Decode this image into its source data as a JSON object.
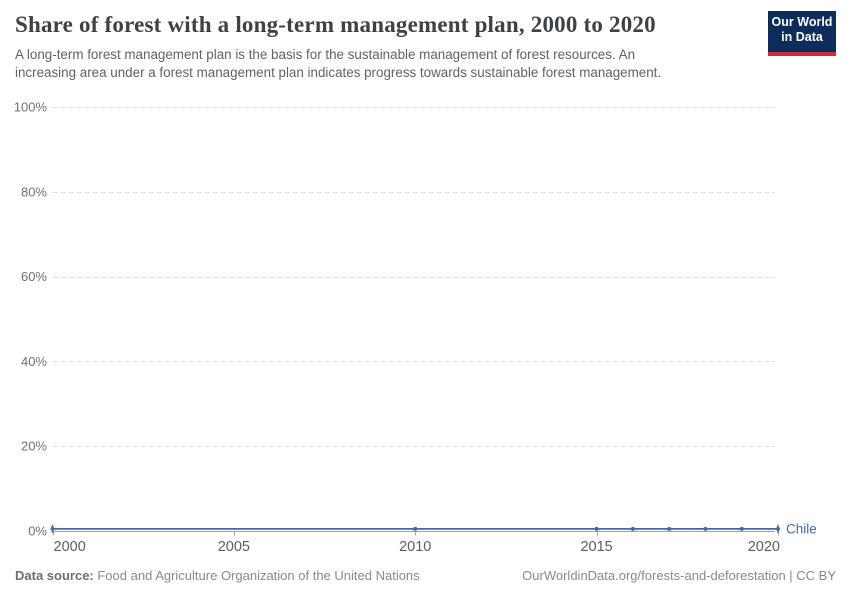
{
  "header": {
    "title": "Share of forest with a long-term management plan, 2000 to 2020",
    "subtitle_lines": [
      "A long-term forest management plan is the basis for the sustainable management of forest resources. An",
      "increasing area under a forest management plan indicates progress towards sustainable forest management."
    ]
  },
  "logo": {
    "line1": "Our World",
    "line2": "in Data",
    "bg_color": "#0c2d5c",
    "bar_color": "#cf2b36"
  },
  "chart_data": {
    "type": "line",
    "title": "Share of forest with a long-term management plan, 2000 to 2020",
    "x": [
      2000,
      2010,
      2015,
      2016,
      2017,
      2018,
      2019,
      2020
    ],
    "series": [
      {
        "name": "Chile",
        "values": [
          0.5,
          0.5,
          0.5,
          0.5,
          0.5,
          0.5,
          0.5,
          0.5
        ],
        "color": "#4668a7"
      }
    ],
    "entity_label": "Chile",
    "xlim": [
      2000,
      2020
    ],
    "ylim": [
      0,
      100
    ],
    "x_ticks": [
      2000,
      2005,
      2010,
      2015,
      2020
    ],
    "x_tick_labels": [
      "2000",
      "2005",
      "2010",
      "2015",
      "2020"
    ],
    "y_ticks": [
      0,
      20,
      40,
      60,
      80,
      100
    ],
    "y_tick_labels": [
      "0%",
      "20%",
      "40%",
      "60%",
      "80%",
      "100%"
    ],
    "grid": "horizontal-dashed",
    "legend_position": "line-end-label",
    "colors": {
      "grid": "#dedede",
      "axis": "#a3a3a3",
      "y_tick_text": "#6e7179",
      "x_tick_text": "#5b5e62"
    }
  },
  "footer": {
    "source_label": "Data source:",
    "source_text": " Food and Agriculture Organization of the United Nations",
    "credit": "OurWorldinData.org/forests-and-deforestation | CC BY"
  }
}
